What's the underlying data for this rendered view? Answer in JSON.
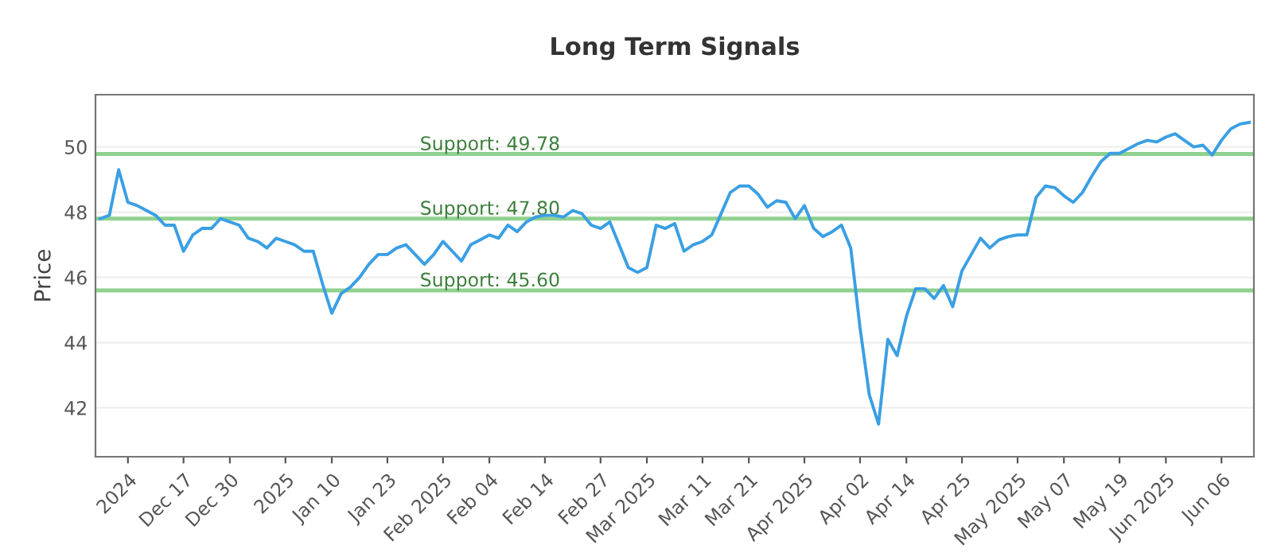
{
  "chart_data": {
    "type": "line",
    "title": "Long Term Signals",
    "ylabel": "Price",
    "categories": [
      null,
      null,
      null,
      "2024",
      null,
      null,
      null,
      null,
      null,
      "Dec 17",
      null,
      null,
      null,
      null,
      "Dec 30",
      null,
      null,
      null,
      null,
      null,
      "2025",
      null,
      null,
      null,
      null,
      "Jan 10",
      null,
      null,
      null,
      null,
      null,
      "Jan 23",
      null,
      null,
      null,
      null,
      null,
      "Feb 2025",
      null,
      null,
      null,
      null,
      "Feb 04",
      null,
      null,
      null,
      null,
      null,
      "Feb 14",
      null,
      null,
      null,
      null,
      null,
      "Feb 27",
      null,
      null,
      null,
      null,
      "Mar 2025",
      null,
      null,
      null,
      null,
      null,
      "Mar 11",
      null,
      null,
      null,
      null,
      "Mar 21",
      null,
      null,
      null,
      null,
      null,
      "Apr 2025",
      null,
      null,
      null,
      null,
      null,
      "Apr 02",
      null,
      null,
      null,
      null,
      "Apr 14",
      null,
      null,
      null,
      null,
      null,
      "Apr 25",
      null,
      null,
      null,
      null,
      null,
      "May 2025",
      null,
      null,
      null,
      null,
      "May 07",
      null,
      null,
      null,
      null,
      null,
      "May 19",
      null,
      null,
      null,
      null,
      "Jun 2025",
      null,
      null,
      null,
      null,
      null,
      "Jun 06",
      null,
      null,
      null
    ],
    "series": [
      {
        "color": "#3a9fe3",
        "values": [
          47.8,
          47.9,
          49.3,
          48.3,
          48.2,
          48.05,
          47.9,
          47.6,
          47.6,
          46.8,
          47.3,
          47.5,
          47.5,
          47.8,
          47.7,
          47.6,
          47.2,
          47.1,
          46.9,
          47.2,
          47.1,
          47.0,
          46.8,
          46.8,
          45.8,
          44.9,
          45.5,
          45.7,
          46.0,
          46.4,
          46.7,
          46.7,
          46.9,
          47.0,
          46.7,
          46.4,
          46.7,
          47.1,
          46.8,
          46.5,
          47.0,
          47.15,
          47.3,
          47.2,
          47.6,
          47.4,
          47.7,
          47.85,
          47.9,
          47.9,
          47.85,
          48.05,
          47.95,
          47.6,
          47.5,
          47.7,
          47.0,
          46.3,
          46.15,
          46.3,
          47.6,
          47.5,
          47.65,
          46.8,
          47.0,
          47.1,
          47.3,
          47.95,
          48.6,
          48.8,
          48.8,
          48.55,
          48.15,
          48.35,
          48.3,
          47.8,
          48.2,
          47.5,
          47.25,
          47.4,
          47.6,
          46.9,
          44.45,
          42.4,
          41.5,
          44.1,
          43.6,
          44.8,
          45.65,
          45.65,
          45.35,
          45.75,
          45.1,
          46.2,
          46.7,
          47.2,
          46.9,
          47.15,
          47.25,
          47.3,
          47.3,
          48.45,
          48.8,
          48.75,
          48.5,
          48.3,
          48.6,
          49.1,
          49.55,
          49.8,
          49.8,
          49.95,
          50.1,
          50.2,
          50.15,
          50.3,
          50.4,
          50.2,
          50.0,
          50.05,
          49.75,
          50.2,
          50.55,
          50.7,
          50.75
        ]
      }
    ],
    "ylim": [
      40.5,
      51.6
    ],
    "yticks": [
      42,
      44,
      46,
      48,
      50
    ],
    "grid": "y",
    "marker": "none",
    "line_style": "solid",
    "ref_lines": [
      {
        "axis": "y",
        "value": 49.78,
        "label": "Support: 49.78",
        "color": "#8fd18f"
      },
      {
        "axis": "y",
        "value": 47.8,
        "label": "Support: 47.80",
        "color": "#8fd18f"
      },
      {
        "axis": "y",
        "value": 45.6,
        "label": "Support: 45.60",
        "color": "#8fd18f"
      }
    ]
  }
}
